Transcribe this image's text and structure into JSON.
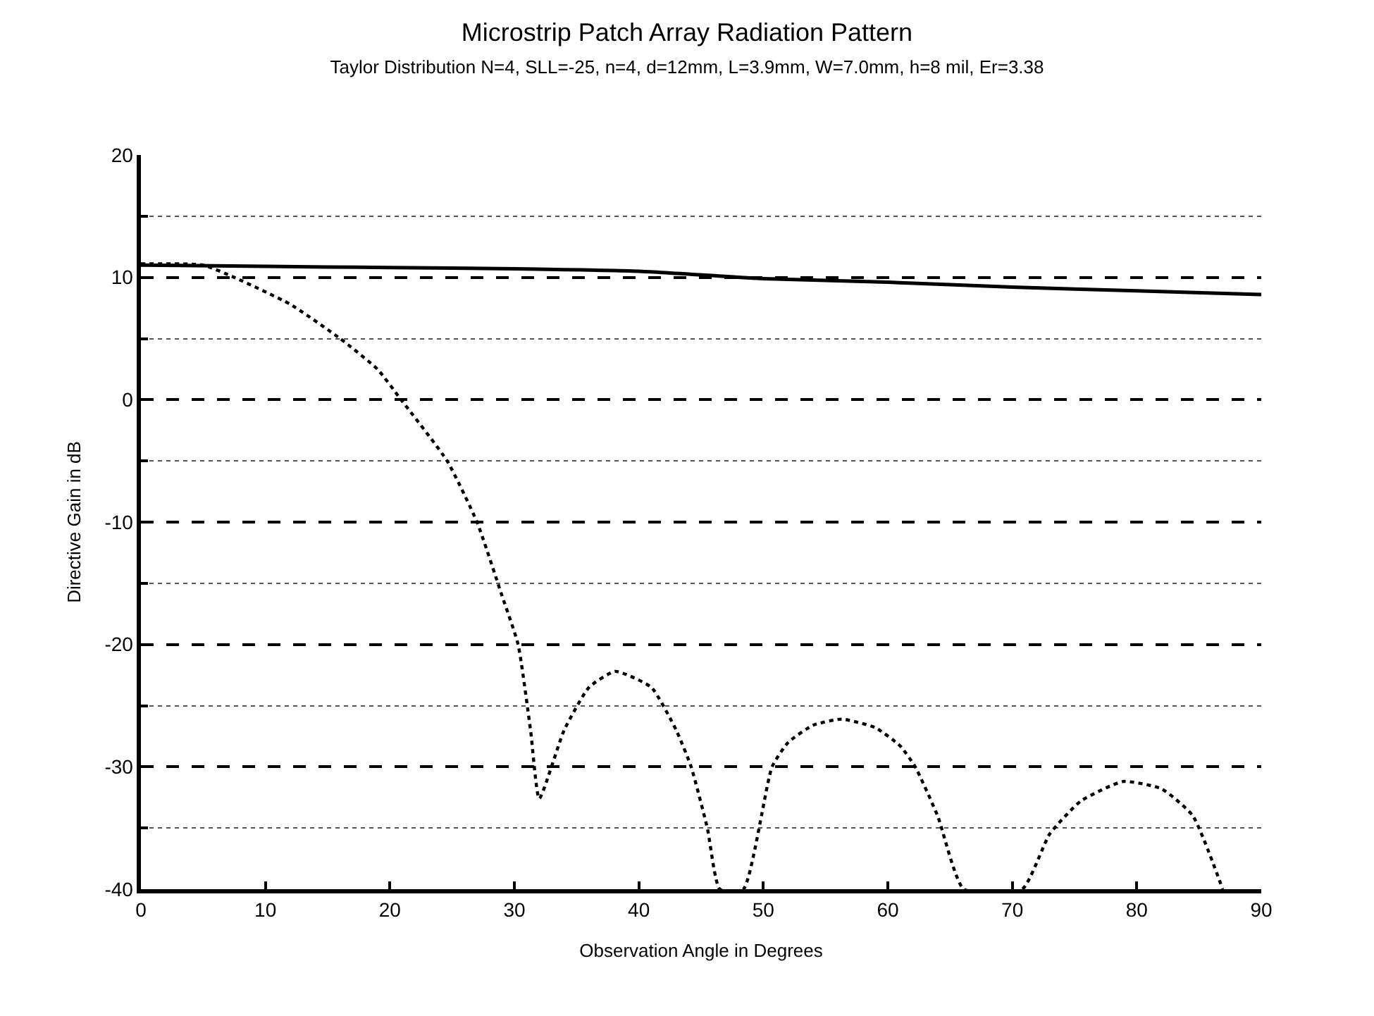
{
  "chart_data": {
    "type": "line",
    "title": "Microstrip Patch Array Radiation Pattern",
    "subtitle": "Taylor Distribution N=4, SLL=-25, n=4, d=12mm, L=3.9mm, W=7.0mm, h=8 mil, Er=3.38",
    "xlabel": "Observation Angle in Degrees",
    "ylabel": "Directive Gain in dB",
    "xlim": [
      0,
      90
    ],
    "xticks": [
      0,
      10,
      20,
      30,
      40,
      50,
      60,
      70,
      80,
      90
    ],
    "ylim": [
      -40,
      20
    ],
    "yticks": [
      -40,
      {
        "value": -35,
        "label": null
      },
      -30,
      {
        "value": -25,
        "label": null
      },
      -20,
      {
        "value": -15,
        "label": null
      },
      -10,
      {
        "value": -5,
        "label": null
      },
      0,
      {
        "value": 5,
        "label": null
      },
      10,
      {
        "value": 15,
        "label": null
      },
      20
    ],
    "grid": "y",
    "marker": "none",
    "series": [
      {
        "color": "#000000",
        "line_style": "solid",
        "x": [
          0,
          10,
          20,
          30,
          40,
          50,
          60,
          70,
          80,
          90
        ],
        "values": [
          11.0,
          10.9,
          10.8,
          10.7,
          10.5,
          9.9,
          9.6,
          9.2,
          8.9,
          8.6
        ]
      },
      {
        "color": "#000000",
        "line_style": "dotted",
        "x": [
          0,
          5,
          7.5,
          12,
          16,
          19,
          20.9,
          24.6,
          27,
          29,
          30.3,
          31.3,
          32,
          34,
          36,
          38.1,
          41,
          43,
          44.2,
          45.5,
          46.5,
          48.4,
          50.7,
          52,
          54,
          56.3,
          59,
          61,
          62.2,
          64,
          66.1,
          70.8,
          73,
          75.5,
          78.9,
          82,
          84.5,
          86.9
        ],
        "values": [
          11.1,
          11.0,
          10.0,
          7.8,
          5.0,
          2.5,
          0,
          -5,
          -10,
          -16,
          -20,
          -27,
          -32.6,
          -27,
          -23.5,
          -22.2,
          -23.5,
          -27,
          -30,
          -35,
          -40,
          -40,
          -30,
          -28,
          -26.6,
          -26.1,
          -26.8,
          -28.3,
          -30,
          -34,
          -40,
          -40,
          -35.5,
          -32.8,
          -31.2,
          -31.8,
          -34,
          -40
        ]
      }
    ]
  }
}
